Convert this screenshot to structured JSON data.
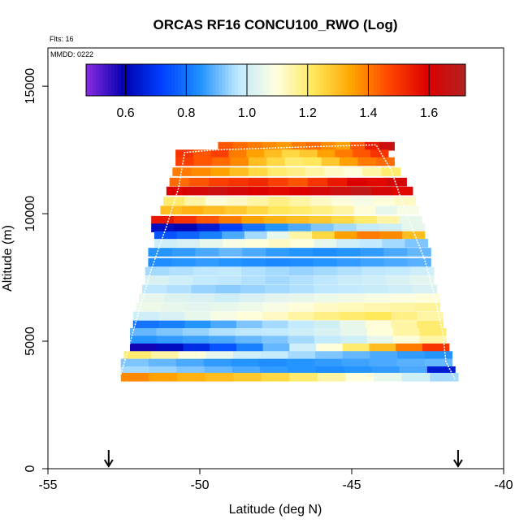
{
  "chart_data": {
    "type": "heatmap",
    "title": "ORCAS RF16 CONCU100_RWO (Log)",
    "flights_label": "Flts: 16",
    "date_label": "MMDD: 0222",
    "xlabel": "Latitude (deg N)",
    "ylabel": "Altitude (m)",
    "xlim": [
      -55,
      -40
    ],
    "ylim": [
      0,
      16500
    ],
    "x_ticks": [
      -55,
      -50,
      -45,
      -40
    ],
    "x_tick_labels": [
      "-55",
      "-50",
      "-45",
      "-40"
    ],
    "y_ticks": [
      0,
      5000,
      10000,
      15000
    ],
    "y_tick_labels": [
      "0",
      "5000",
      "10000",
      "15000"
    ],
    "colorbar": {
      "range": [
        0.47,
        1.72
      ],
      "ticks": [
        0.6,
        0.8,
        1.0,
        1.2,
        1.4,
        1.6
      ],
      "tick_labels": [
        "0.6",
        "0.8",
        "1.0",
        "1.2",
        "1.4",
        "1.6"
      ],
      "colors": [
        "#8A2BE2",
        "#0000B0",
        "#0040FF",
        "#1E90FF",
        "#BFE8FF",
        "#FFFFE0",
        "#FFE85A",
        "#FFA500",
        "#FF4500",
        "#DD0000",
        "#B22222"
      ]
    },
    "markers": {
      "type": "arrow-down",
      "latitudes": [
        -53.0,
        -41.5
      ],
      "altitude": 700
    },
    "track": [
      [
        -52.6,
        3700
      ],
      [
        -52.4,
        4500
      ],
      [
        -52.0,
        6200
      ],
      [
        -51.6,
        7800
      ],
      [
        -51.1,
        9500
      ],
      [
        -50.7,
        11000
      ],
      [
        -50.5,
        12400
      ],
      [
        -49.5,
        12500
      ],
      [
        -47.0,
        12600
      ],
      [
        -44.2,
        12700
      ],
      [
        -43.7,
        11700
      ],
      [
        -43.2,
        10000
      ],
      [
        -42.6,
        8200
      ],
      [
        -42.3,
        6900
      ],
      [
        -42.0,
        5300
      ],
      [
        -41.9,
        4200
      ],
      [
        -41.6,
        3500
      ]
    ],
    "rows": [
      {
        "alt": 12650,
        "lat_min": -49.4,
        "lat_max": -43.6,
        "values": [
          1.45,
          1.42,
          1.4,
          1.38,
          1.36,
          1.4,
          1.42,
          1.38,
          1.35,
          1.45,
          1.55,
          1.65
        ]
      },
      {
        "alt": 12350,
        "lat_min": -50.8,
        "lat_max": -43.8,
        "values": [
          1.5,
          1.45,
          1.48,
          1.4,
          1.35,
          1.3,
          1.25,
          1.28,
          1.35,
          1.4,
          1.45,
          1.5
        ]
      },
      {
        "alt": 12050,
        "lat_min": -50.8,
        "lat_max": -43.6,
        "values": [
          1.48,
          1.45,
          1.42,
          1.38,
          1.3,
          1.25,
          1.2,
          1.22,
          1.28,
          1.35,
          1.4,
          1.42
        ]
      },
      {
        "alt": 11650,
        "lat_min": -50.9,
        "lat_max": -43.4,
        "values": [
          1.4,
          1.38,
          1.35,
          1.3,
          1.25,
          1.2,
          1.18,
          1.15,
          1.12,
          1.1,
          1.15,
          1.2
        ]
      },
      {
        "alt": 11250,
        "lat_min": -51.0,
        "lat_max": -43.2,
        "values": [
          1.42,
          1.45,
          1.48,
          1.5,
          1.52,
          1.48,
          1.45,
          1.5,
          1.55,
          1.6,
          1.58,
          1.62
        ]
      },
      {
        "alt": 10900,
        "lat_min": -51.1,
        "lat_max": -43.0,
        "values": [
          1.6,
          1.62,
          1.65,
          1.62,
          1.6,
          1.58,
          1.6,
          1.62,
          1.65,
          1.68,
          1.62,
          1.58
        ]
      },
      {
        "alt": 10500,
        "lat_min": -51.2,
        "lat_max": -42.9,
        "values": [
          1.2,
          1.15,
          1.1,
          1.12,
          1.15,
          1.18,
          1.15,
          1.12,
          1.1,
          1.08,
          1.1,
          1.12
        ]
      },
      {
        "alt": 10150,
        "lat_min": -51.3,
        "lat_max": -42.8,
        "values": [
          1.3,
          1.32,
          1.3,
          1.28,
          1.25,
          1.22,
          1.2,
          1.18,
          1.15,
          1.1,
          1.05,
          1.08
        ]
      },
      {
        "alt": 9750,
        "lat_min": -51.6,
        "lat_max": -42.7,
        "values": [
          1.55,
          1.5,
          1.45,
          1.4,
          1.35,
          1.32,
          1.3,
          1.28,
          1.25,
          1.2,
          1.15,
          1.05
        ]
      },
      {
        "alt": 9450,
        "lat_min": -51.6,
        "lat_max": -42.6,
        "values": [
          0.62,
          0.6,
          0.65,
          0.72,
          0.8,
          0.85,
          0.88,
          0.92,
          0.95,
          0.98,
          1.0,
          1.05
        ]
      },
      {
        "alt": 9150,
        "lat_min": -51.5,
        "lat_max": -42.6,
        "values": [
          0.75,
          0.78,
          0.82,
          0.88,
          0.95,
          1.05,
          1.15,
          1.25,
          1.35,
          1.4,
          1.38,
          1.3
        ]
      },
      {
        "alt": 8850,
        "lat_min": -51.5,
        "lat_max": -42.5,
        "values": [
          1.0,
          1.02,
          1.05,
          1.08,
          1.1,
          1.12,
          1.1,
          1.05,
          1.0,
          0.98,
          0.95,
          0.92
        ]
      },
      {
        "alt": 8500,
        "lat_min": -51.7,
        "lat_max": -42.4,
        "values": [
          0.85,
          0.86,
          0.88,
          0.9,
          0.88,
          0.86,
          0.85,
          0.84,
          0.85,
          0.86,
          0.88,
          0.9
        ]
      },
      {
        "alt": 8100,
        "lat_min": -51.7,
        "lat_max": -42.4,
        "values": [
          0.84,
          0.85,
          0.86,
          0.85,
          0.84,
          0.83,
          0.84,
          0.85,
          0.86,
          0.87,
          0.88,
          0.89
        ]
      },
      {
        "alt": 7750,
        "lat_min": -51.8,
        "lat_max": -42.3,
        "values": [
          0.95,
          0.96,
          0.97,
          0.98,
          0.96,
          0.95,
          0.94,
          0.95,
          0.96,
          0.97,
          0.98,
          1.0
        ]
      },
      {
        "alt": 7400,
        "lat_min": -51.8,
        "lat_max": -42.3,
        "values": [
          1.02,
          1.0,
          0.98,
          0.97,
          0.96,
          0.95,
          0.96,
          0.97,
          0.99,
          1.0,
          1.02,
          1.04
        ]
      },
      {
        "alt": 7050,
        "lat_min": -51.9,
        "lat_max": -42.2,
        "values": [
          0.97,
          0.96,
          0.94,
          0.93,
          0.94,
          0.95,
          0.96,
          0.97,
          0.98,
          0.99,
          1.0,
          1.02
        ]
      },
      {
        "alt": 6700,
        "lat_min": -52.0,
        "lat_max": -42.1,
        "values": [
          1.05,
          1.03,
          1.02,
          1.0,
          1.02,
          1.04,
          1.05,
          1.06,
          1.07,
          1.08,
          1.09,
          1.1
        ]
      },
      {
        "alt": 6350,
        "lat_min": -52.1,
        "lat_max": -42.1,
        "values": [
          1.06,
          1.05,
          1.04,
          1.05,
          1.06,
          1.08,
          1.1,
          1.12,
          1.13,
          1.14,
          1.15,
          1.16
        ]
      },
      {
        "alt": 6000,
        "lat_min": -52.2,
        "lat_max": -42.0,
        "values": [
          1.0,
          1.02,
          1.05,
          1.08,
          1.1,
          1.12,
          1.15,
          1.18,
          1.2,
          1.22,
          1.18,
          1.15
        ]
      },
      {
        "alt": 5650,
        "lat_min": -52.2,
        "lat_max": -42.0,
        "values": [
          0.8,
          0.82,
          0.85,
          0.88,
          0.92,
          0.95,
          0.98,
          1.0,
          1.05,
          1.1,
          1.15,
          1.2
        ]
      },
      {
        "alt": 5350,
        "lat_min": -52.3,
        "lat_max": -41.9,
        "values": [
          0.9,
          0.92,
          0.94,
          0.96,
          0.97,
          0.98,
          1.0,
          1.02,
          1.05,
          1.1,
          1.15,
          1.2
        ]
      },
      {
        "alt": 5050,
        "lat_min": -52.3,
        "lat_max": -41.9,
        "values": [
          0.85,
          0.86,
          0.87,
          0.88,
          0.9,
          0.92,
          0.95,
          0.98,
          1.0,
          1.05,
          1.1,
          1.15
        ]
      },
      {
        "alt": 4750,
        "lat_min": -52.3,
        "lat_max": -41.8,
        "values": [
          0.58,
          0.62,
          0.68,
          0.75,
          0.82,
          0.9,
          1.0,
          1.1,
          1.2,
          1.3,
          1.4,
          1.5
        ]
      },
      {
        "alt": 4450,
        "lat_min": -52.5,
        "lat_max": -41.7,
        "values": [
          1.2,
          1.15,
          1.1,
          1.05,
          1.0,
          0.98,
          0.95,
          0.92,
          0.9,
          0.88,
          0.86,
          0.85
        ]
      },
      {
        "alt": 4150,
        "lat_min": -52.6,
        "lat_max": -41.7,
        "values": [
          0.92,
          0.9,
          0.88,
          0.86,
          0.85,
          0.84,
          0.85,
          0.86,
          0.87,
          0.88,
          0.89,
          0.9
        ]
      },
      {
        "alt": 3850,
        "lat_min": -52.6,
        "lat_max": -41.6,
        "values": [
          0.95,
          0.94,
          0.92,
          0.9,
          0.88,
          0.86,
          0.85,
          0.84,
          0.85,
          0.86,
          0.88,
          0.65
        ]
      },
      {
        "alt": 3600,
        "lat_min": -52.6,
        "lat_max": -41.5,
        "values": [
          1.38,
          1.35,
          1.32,
          1.3,
          1.28,
          1.25,
          1.2,
          1.15,
          1.1,
          1.05,
          1.0,
          0.95
        ]
      }
    ]
  }
}
